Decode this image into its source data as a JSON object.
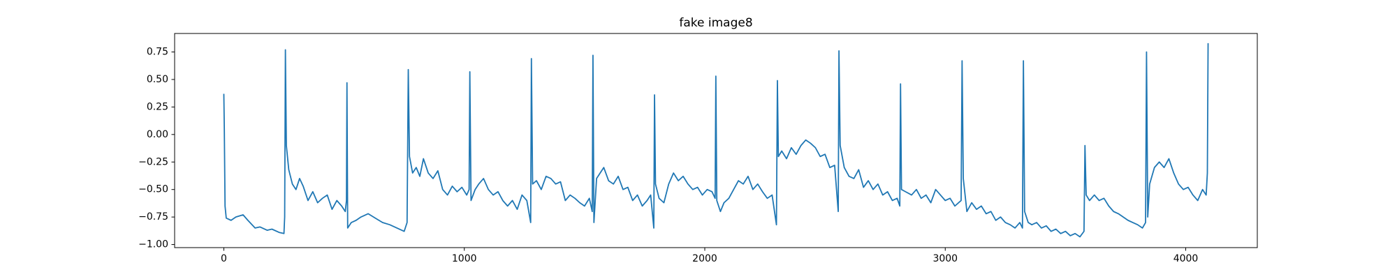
{
  "chart_data": {
    "type": "line",
    "title": "fake image8",
    "color": "#1f77b4",
    "xlim": [
      -204.65,
      4297.65
    ],
    "ylim": [
      -1.028,
      0.918
    ],
    "xticks": [
      0,
      1000,
      2000,
      3000,
      4000
    ],
    "yticks": [
      0.75,
      {
        "value": 0.5,
        "label": "0.50"
      },
      0.25,
      {
        "value": 0,
        "label": "0.00"
      },
      {
        "value": -0.25,
        "label": "−0.25"
      },
      {
        "value": -0.5,
        "label": "−0.50"
      },
      {
        "value": -0.75,
        "label": "−0.75"
      },
      {
        "value": -1,
        "label": "−1.00"
      }
    ],
    "x": [
      0,
      2,
      5,
      10,
      30,
      50,
      80,
      100,
      130,
      150,
      180,
      200,
      230,
      250,
      253,
      256,
      260,
      270,
      285,
      300,
      315,
      330,
      350,
      370,
      390,
      410,
      430,
      450,
      470,
      490,
      505,
      510,
      512,
      515,
      530,
      550,
      570,
      600,
      630,
      660,
      690,
      720,
      750,
      762,
      767,
      772,
      785,
      800,
      815,
      830,
      850,
      870,
      890,
      910,
      930,
      950,
      970,
      990,
      1010,
      1020,
      1023,
      1028,
      1045,
      1060,
      1080,
      1100,
      1120,
      1140,
      1160,
      1180,
      1200,
      1220,
      1240,
      1260,
      1276,
      1279,
      1284,
      1300,
      1320,
      1340,
      1360,
      1380,
      1400,
      1420,
      1440,
      1460,
      1480,
      1500,
      1520,
      1532,
      1535,
      1539,
      1550,
      1565,
      1580,
      1600,
      1620,
      1640,
      1660,
      1680,
      1700,
      1720,
      1740,
      1760,
      1775,
      1788,
      1791,
      1795,
      1810,
      1830,
      1850,
      1870,
      1890,
      1910,
      1930,
      1950,
      1970,
      1990,
      2010,
      2030,
      2043,
      2046,
      2050,
      2065,
      2080,
      2100,
      2120,
      2140,
      2160,
      2180,
      2200,
      2220,
      2240,
      2260,
      2280,
      2298,
      2302,
      2306,
      2320,
      2340,
      2360,
      2380,
      2400,
      2420,
      2440,
      2460,
      2480,
      2500,
      2520,
      2540,
      2555,
      2558,
      2563,
      2580,
      2600,
      2620,
      2640,
      2660,
      2680,
      2700,
      2720,
      2740,
      2760,
      2780,
      2800,
      2811,
      2814,
      2818,
      2835,
      2860,
      2880,
      2900,
      2920,
      2940,
      2960,
      2980,
      3000,
      3020,
      3040,
      3066,
      3070,
      3075,
      3090,
      3110,
      3130,
      3150,
      3170,
      3190,
      3210,
      3230,
      3250,
      3270,
      3290,
      3310,
      3321,
      3325,
      3330,
      3345,
      3360,
      3380,
      3400,
      3420,
      3440,
      3460,
      3480,
      3500,
      3520,
      3540,
      3560,
      3577,
      3581,
      3586,
      3600,
      3620,
      3640,
      3660,
      3680,
      3700,
      3720,
      3740,
      3760,
      3780,
      3800,
      3820,
      3833,
      3837,
      3842,
      3850,
      3870,
      3890,
      3910,
      3930,
      3950,
      3970,
      3990,
      4010,
      4030,
      4050,
      4070,
      4085,
      4090,
      4093
    ],
    "values": [
      0.37,
      0.05,
      -0.65,
      -0.76,
      -0.78,
      -0.75,
      -0.73,
      -0.78,
      -0.85,
      -0.84,
      -0.87,
      -0.86,
      -0.89,
      -0.9,
      -0.75,
      0.77,
      -0.1,
      -0.32,
      -0.45,
      -0.5,
      -0.4,
      -0.47,
      -0.6,
      -0.52,
      -0.62,
      -0.58,
      -0.55,
      -0.68,
      -0.6,
      -0.65,
      -0.7,
      -0.6,
      0.47,
      -0.85,
      -0.8,
      -0.78,
      -0.75,
      -0.72,
      -0.76,
      -0.8,
      -0.82,
      -0.85,
      -0.88,
      -0.8,
      0.59,
      -0.2,
      -0.35,
      -0.3,
      -0.38,
      -0.22,
      -0.35,
      -0.4,
      -0.33,
      -0.5,
      -0.55,
      -0.47,
      -0.52,
      -0.48,
      -0.55,
      -0.5,
      0.57,
      -0.6,
      -0.5,
      -0.45,
      -0.4,
      -0.5,
      -0.55,
      -0.52,
      -0.6,
      -0.65,
      -0.6,
      -0.68,
      -0.55,
      -0.6,
      -0.8,
      0.69,
      -0.45,
      -0.42,
      -0.5,
      -0.38,
      -0.4,
      -0.45,
      -0.43,
      -0.6,
      -0.55,
      -0.58,
      -0.62,
      -0.65,
      -0.58,
      -0.7,
      0.72,
      -0.8,
      -0.4,
      -0.35,
      -0.3,
      -0.42,
      -0.45,
      -0.38,
      -0.5,
      -0.48,
      -0.6,
      -0.55,
      -0.65,
      -0.6,
      -0.55,
      -0.85,
      0.36,
      -0.45,
      -0.58,
      -0.62,
      -0.45,
      -0.35,
      -0.42,
      -0.38,
      -0.45,
      -0.5,
      -0.48,
      -0.55,
      -0.5,
      -0.52,
      -0.58,
      0.53,
      -0.6,
      -0.7,
      -0.62,
      -0.58,
      -0.5,
      -0.42,
      -0.45,
      -0.38,
      -0.5,
      -0.45,
      -0.52,
      -0.58,
      -0.55,
      -0.82,
      0.49,
      -0.2,
      -0.15,
      -0.22,
      -0.12,
      -0.18,
      -0.1,
      -0.05,
      -0.08,
      -0.12,
      -0.2,
      -0.18,
      -0.3,
      -0.28,
      -0.7,
      0.76,
      -0.1,
      -0.3,
      -0.38,
      -0.4,
      -0.32,
      -0.48,
      -0.42,
      -0.5,
      -0.45,
      -0.55,
      -0.52,
      -0.6,
      -0.58,
      -0.65,
      0.46,
      -0.5,
      -0.52,
      -0.55,
      -0.5,
      -0.58,
      -0.55,
      -0.62,
      -0.5,
      -0.55,
      -0.6,
      -0.58,
      -0.65,
      -0.6,
      0.67,
      -0.4,
      -0.7,
      -0.62,
      -0.68,
      -0.65,
      -0.72,
      -0.7,
      -0.78,
      -0.75,
      -0.8,
      -0.82,
      -0.85,
      -0.8,
      -0.85,
      0.67,
      -0.7,
      -0.8,
      -0.82,
      -0.8,
      -0.85,
      -0.83,
      -0.88,
      -0.86,
      -0.9,
      -0.88,
      -0.92,
      -0.9,
      -0.93,
      -0.88,
      -0.1,
      -0.55,
      -0.6,
      -0.55,
      -0.6,
      -0.58,
      -0.65,
      -0.7,
      -0.72,
      -0.75,
      -0.78,
      -0.8,
      -0.82,
      -0.85,
      -0.8,
      0.75,
      -0.75,
      -0.45,
      -0.3,
      -0.25,
      -0.3,
      -0.22,
      -0.35,
      -0.45,
      -0.5,
      -0.48,
      -0.55,
      -0.6,
      -0.5,
      -0.55,
      -0.35,
      0.83
    ]
  }
}
